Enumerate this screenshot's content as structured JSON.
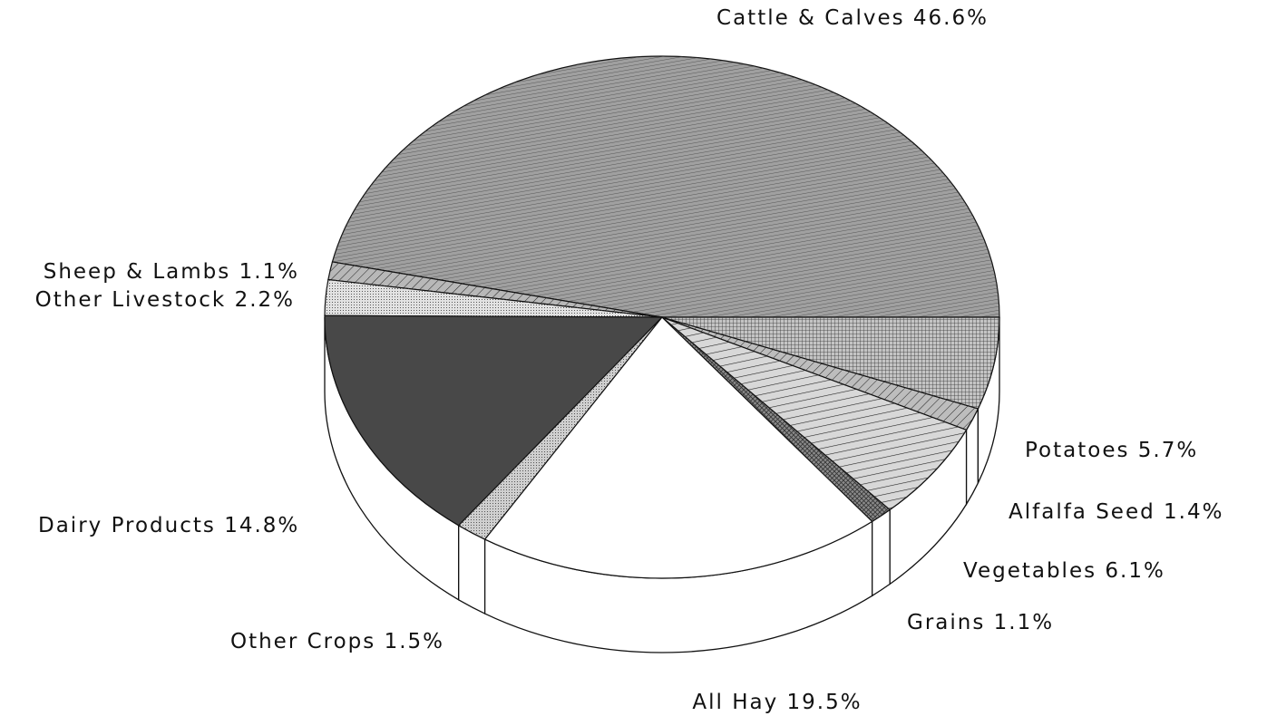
{
  "chart_data": {
    "type": "pie",
    "categories": [
      "Cattle & Calves",
      "Sheep & Lambs",
      "Other Livestock",
      "Dairy Products",
      "Other Crops",
      "All Hay",
      "Grains",
      "Vegetables",
      "Alfalfa Seed",
      "Potatoes"
    ],
    "values": [
      46.6,
      1.1,
      2.2,
      14.8,
      1.5,
      19.5,
      1.1,
      6.1,
      1.4,
      5.7
    ],
    "value_labels": [
      "46.6%",
      "1.1%",
      "2.2%",
      "14.8%",
      "1.5%",
      "19.5%",
      "1.1%",
      "6.1%",
      "1.4%",
      "5.7%"
    ],
    "colors": [
      "#a0a0a0",
      "#b8b8b8",
      "#e2e2e2",
      "#484848",
      "#cfcfcf",
      "#ffffff",
      "#8a8a8a",
      "#d8d8d8",
      "#bdbdbd",
      "#c4c4c4"
    ]
  }
}
